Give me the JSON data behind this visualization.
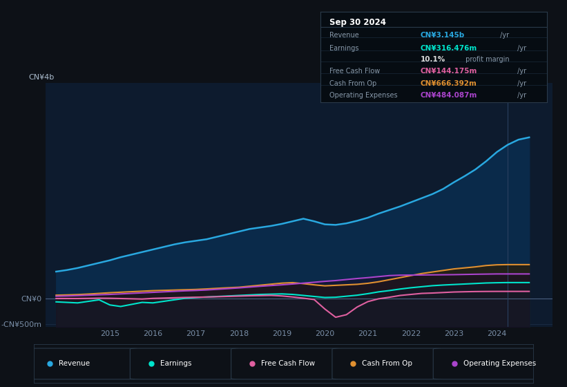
{
  "bg_color": "#0d1117",
  "plot_bg_color": "#0d1b2e",
  "grid_color": "#1c2e45",
  "years": [
    2013.75,
    2014.0,
    2014.25,
    2014.5,
    2014.75,
    2015.0,
    2015.25,
    2015.5,
    2015.75,
    2016.0,
    2016.25,
    2016.5,
    2016.75,
    2017.0,
    2017.25,
    2017.5,
    2017.75,
    2018.0,
    2018.25,
    2018.5,
    2018.75,
    2019.0,
    2019.25,
    2019.5,
    2019.75,
    2020.0,
    2020.25,
    2020.5,
    2020.75,
    2021.0,
    2021.25,
    2021.5,
    2021.75,
    2022.0,
    2022.25,
    2022.5,
    2022.75,
    2023.0,
    2023.25,
    2023.5,
    2023.75,
    2024.0,
    2024.25,
    2024.5,
    2024.75
  ],
  "revenue": [
    530,
    560,
    600,
    650,
    700,
    750,
    810,
    860,
    910,
    960,
    1010,
    1060,
    1100,
    1130,
    1160,
    1210,
    1260,
    1310,
    1360,
    1390,
    1420,
    1460,
    1510,
    1560,
    1510,
    1450,
    1440,
    1470,
    1520,
    1580,
    1660,
    1730,
    1800,
    1880,
    1960,
    2040,
    2140,
    2270,
    2390,
    2520,
    2680,
    2860,
    3000,
    3100,
    3145
  ],
  "earnings": [
    -60,
    -70,
    -80,
    -50,
    -20,
    -120,
    -150,
    -110,
    -70,
    -80,
    -50,
    -20,
    10,
    25,
    35,
    45,
    55,
    65,
    75,
    85,
    90,
    95,
    85,
    65,
    45,
    25,
    30,
    50,
    70,
    100,
    135,
    160,
    190,
    215,
    235,
    255,
    268,
    278,
    288,
    298,
    308,
    313,
    316,
    316,
    316
  ],
  "free_cash_flow": [
    5,
    5,
    5,
    8,
    12,
    10,
    5,
    0,
    -5,
    8,
    14,
    20,
    26,
    30,
    34,
    40,
    46,
    52,
    58,
    62,
    66,
    55,
    35,
    12,
    -15,
    -200,
    -360,
    -310,
    -160,
    -55,
    0,
    30,
    65,
    85,
    105,
    112,
    122,
    132,
    137,
    141,
    143,
    144,
    144,
    144,
    144
  ],
  "cash_from_op": [
    70,
    75,
    82,
    92,
    105,
    118,
    128,
    138,
    148,
    158,
    164,
    170,
    176,
    182,
    192,
    204,
    215,
    225,
    245,
    265,
    285,
    305,
    315,
    295,
    272,
    252,
    262,
    272,
    282,
    302,
    332,
    372,
    412,
    452,
    492,
    522,
    552,
    582,
    602,
    622,
    648,
    662,
    666,
    666,
    666
  ],
  "operating_expenses": [
    50,
    55,
    62,
    70,
    78,
    85,
    95,
    105,
    115,
    125,
    135,
    145,
    155,
    162,
    172,
    185,
    198,
    212,
    228,
    244,
    258,
    272,
    288,
    305,
    322,
    340,
    355,
    375,
    395,
    412,
    432,
    452,
    460,
    462,
    464,
    466,
    468,
    470,
    474,
    478,
    481,
    484,
    484,
    484,
    484
  ],
  "revenue_color": "#29a8e0",
  "earnings_color": "#00e5cc",
  "fcf_color": "#e060a0",
  "cashop_color": "#e09030",
  "opex_color": "#aa44cc",
  "revenue_fill": "#0a2a4a",
  "cashop_fill": "#1a1500",
  "legend": [
    {
      "label": "Revenue",
      "color": "#29a8e0"
    },
    {
      "label": "Earnings",
      "color": "#00e5cc"
    },
    {
      "label": "Free Cash Flow",
      "color": "#e060a0"
    },
    {
      "label": "Cash From Op",
      "color": "#e09030"
    },
    {
      "label": "Operating Expenses",
      "color": "#aa44cc"
    }
  ],
  "ylim": [
    -550,
    4200
  ],
  "xticks": [
    2015,
    2016,
    2017,
    2018,
    2019,
    2020,
    2021,
    2022,
    2023,
    2024
  ]
}
